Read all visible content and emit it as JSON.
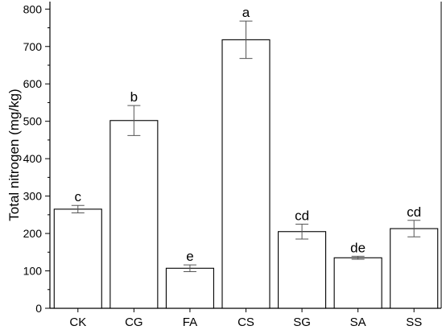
{
  "chart_data": {
    "type": "bar",
    "ylabel": "Total nitrogen (mg/kg)",
    "xlabel": "",
    "ylim": [
      0,
      820
    ],
    "yticks": [
      0,
      100,
      200,
      300,
      400,
      500,
      600,
      700,
      800
    ],
    "categories": [
      "CK",
      "CG",
      "FA",
      "CS",
      "SG",
      "SA",
      "SS"
    ],
    "values": [
      265,
      502,
      107,
      718,
      205,
      135,
      213
    ],
    "errors": [
      10,
      40,
      9,
      50,
      20,
      4,
      22
    ],
    "significance": [
      "c",
      "b",
      "e",
      "a",
      "cd",
      "de",
      "cd"
    ],
    "bar_fill": "#ffffff",
    "bar_stroke": "#000000",
    "grid": false
  }
}
